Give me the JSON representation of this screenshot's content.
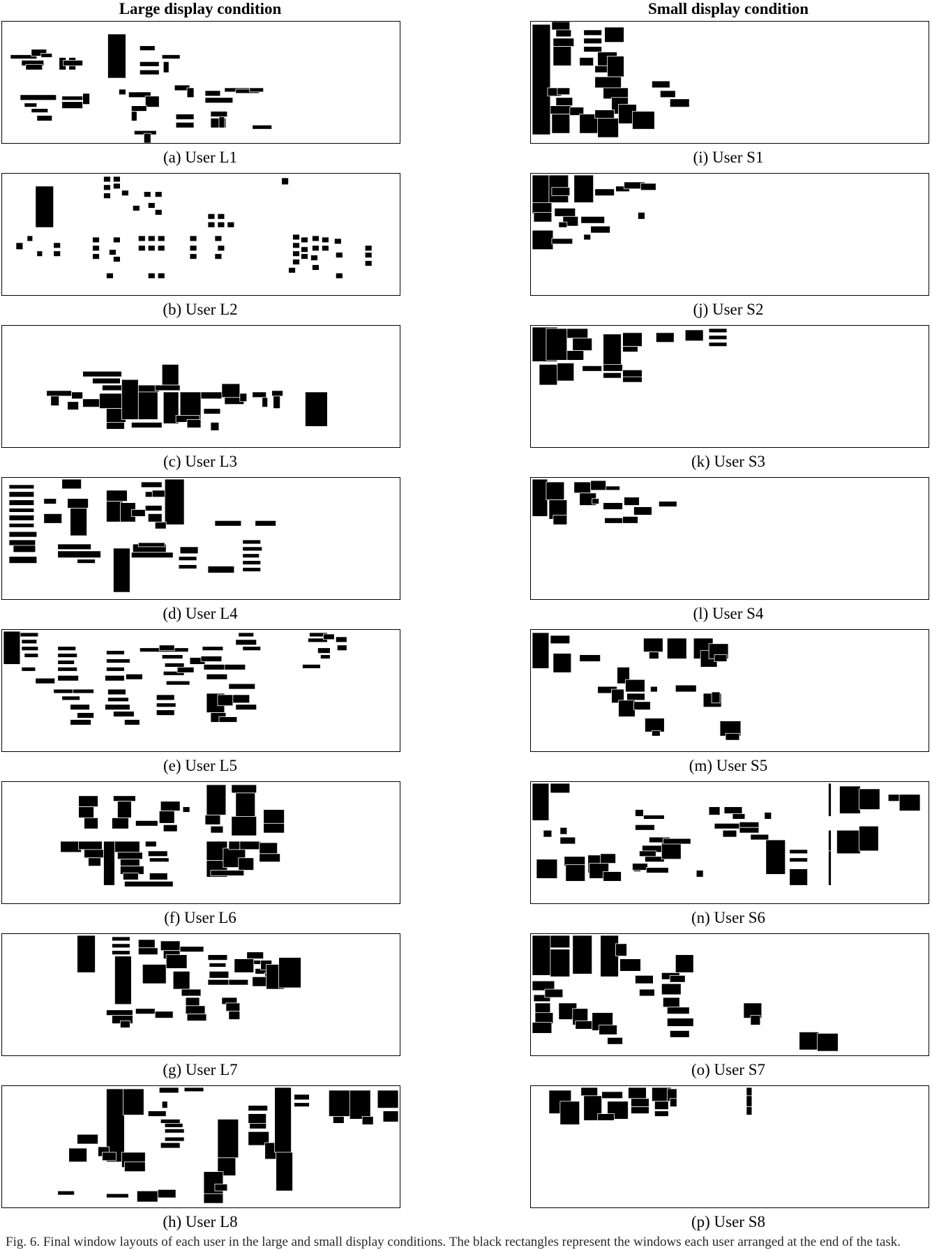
{
  "columns": {
    "large_title": "Large display condition",
    "small_title": "Small display condition"
  },
  "captions": {
    "L1": "(a) User L1",
    "L2": "(b) User L2",
    "L3": "(c) User L3",
    "L4": "(d) User L4",
    "L5": "(e) User L5",
    "L6": "(f) User L6",
    "L7": "(g) User L7",
    "L8": "(h) User L8",
    "S1": "(i) User S1",
    "S2": "(j) User S2",
    "S3": "(k) User S3",
    "S4": "(l) User S4",
    "S5": "(m) User S5",
    "S6": "(n) User S6",
    "S7": "(o) User S7",
    "S8": "(p) User S8"
  },
  "footer_text": "Fig. 6. Final window layouts of each user in the large and small display conditions. The black rectangles represent the windows each user arranged at the end of the task."
}
